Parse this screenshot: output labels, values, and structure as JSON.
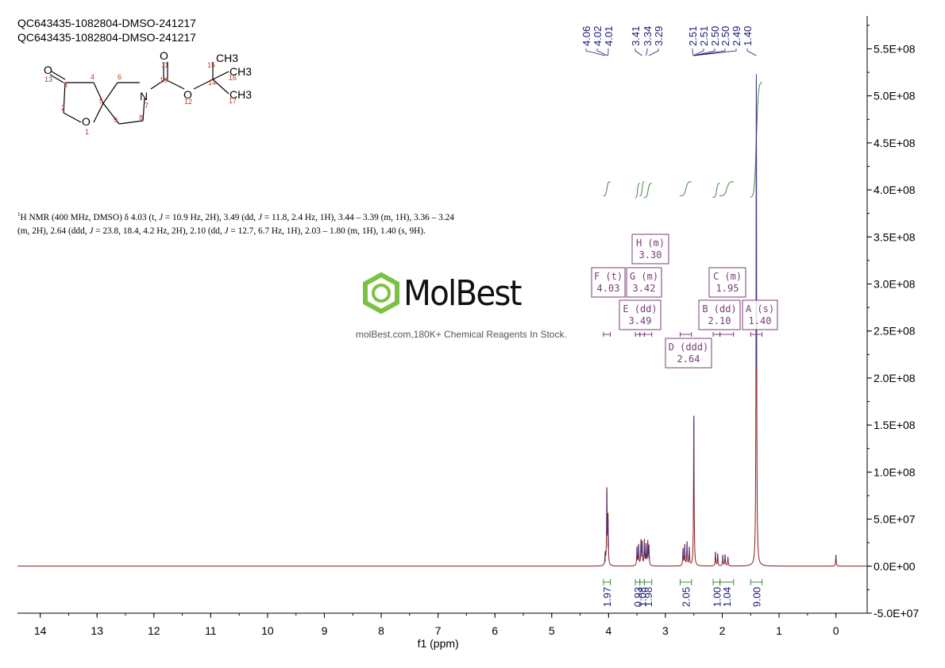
{
  "header": {
    "line1": "QC643435-1082804-DMSO-241217",
    "line2": "QC643435-1082804-DMSO-241217"
  },
  "description": {
    "sup": "1",
    "seg1": "H NMR (400 MHz, DMSO) δ 4.03 (t, ",
    "j1": "J",
    "seg2": " = 10.9 Hz, 2H), 3.49 (dd, ",
    "j2": "J",
    "seg3": " = 11.8, 2.4 Hz, 1H), 3.44 – 3.39 (m, 1H), 3.36 – 3.24 (m, 2H), 2.64 (ddd, ",
    "j3": "J",
    "seg4": " = 23.8, 18.4, 4.2 Hz, 2H), 2.10 (dd, ",
    "j4": "J",
    "seg5": " = 12.7, 6.7 Hz, 1H), 2.03 – 1.80 (m, 1H), 1.40 (s, 9H)."
  },
  "watermark": {
    "brand": "MolBest",
    "tagline": "molBest.com,180K+ Chemical Reagents In Stock."
  },
  "molecule": {
    "atoms": [
      "O",
      "O",
      "N",
      "O",
      "O",
      "CH3",
      "CH3",
      "CH3"
    ],
    "numbers": [
      "13",
      "3",
      "4",
      "6",
      "5",
      "2",
      "1",
      "9",
      "8",
      "7",
      "10",
      "11",
      "12",
      "14",
      "15",
      "16",
      "17"
    ]
  },
  "colors": {
    "spectrum": "#8b1a1a",
    "integral": "#3c8a3c",
    "peak_label": "#1a1a7a",
    "multiplet_box": "#7a3c7a",
    "logo_green": "#7cc242"
  },
  "chart_data": {
    "type": "line",
    "xlabel": "f1 (ppm)",
    "ylabel": "",
    "x_reversed": true,
    "xlim": [
      14.4,
      -0.55
    ],
    "ylim": [
      -50000000.0,
      585000000.0
    ],
    "x_ticks": [
      14,
      13,
      12,
      11,
      10,
      9,
      8,
      7,
      6,
      5,
      4,
      3,
      2,
      1,
      0
    ],
    "y_ticks": [
      -50000000.0,
      0,
      50000000.0,
      100000000.0,
      150000000.0,
      200000000.0,
      250000000.0,
      300000000.0,
      350000000.0,
      400000000.0,
      450000000.0,
      500000000.0,
      550000000.0
    ],
    "y_tick_labels": [
      "-5.0E+07",
      "0.0E+00",
      "5.0E+07",
      "1.0E+08",
      "1.5E+08",
      "2.0E+08",
      "2.5E+08",
      "3.0E+08",
      "3.5E+08",
      "4.0E+08",
      "4.5E+08",
      "5.0E+08",
      "5.5E+08"
    ],
    "peak_labels": [
      "4.06",
      "4.02",
      "4.01",
      "3.41",
      "3.34",
      "3.29",
      "2.51",
      "2.51",
      "2.50",
      "2.50",
      "2.49",
      "1.40"
    ],
    "peaks": [
      {
        "ppm": 4.06,
        "height": 12000000.0
      },
      {
        "ppm": 4.03,
        "height": 80000000.0
      },
      {
        "ppm": 4.01,
        "height": 50000000.0
      },
      {
        "ppm": 3.5,
        "height": 20000000.0
      },
      {
        "ppm": 3.47,
        "height": 22000000.0
      },
      {
        "ppm": 3.43,
        "height": 26000000.0
      },
      {
        "ppm": 3.41,
        "height": 24000000.0
      },
      {
        "ppm": 3.37,
        "height": 27000000.0
      },
      {
        "ppm": 3.34,
        "height": 22000000.0
      },
      {
        "ppm": 3.31,
        "height": 25000000.0
      },
      {
        "ppm": 3.29,
        "height": 20000000.0
      },
      {
        "ppm": 2.69,
        "height": 18000000.0
      },
      {
        "ppm": 2.66,
        "height": 22000000.0
      },
      {
        "ppm": 2.62,
        "height": 25000000.0
      },
      {
        "ppm": 2.58,
        "height": 19000000.0
      },
      {
        "ppm": 2.5,
        "height": 160000000.0
      },
      {
        "ppm": 2.12,
        "height": 15000000.0
      },
      {
        "ppm": 2.08,
        "height": 13000000.0
      },
      {
        "ppm": 1.99,
        "height": 11000000.0
      },
      {
        "ppm": 1.95,
        "height": 12000000.0
      },
      {
        "ppm": 1.9,
        "height": 9000000.0
      },
      {
        "ppm": 1.4,
        "height": 523000000.0
      },
      {
        "ppm": 0.0,
        "height": 12000000.0
      }
    ],
    "integrals": [
      {
        "from": 4.09,
        "to": 3.97,
        "value": "1.97"
      },
      {
        "from": 3.53,
        "to": 3.45,
        "value": "0.93"
      },
      {
        "from": 3.45,
        "to": 3.37,
        "value": "1.08"
      },
      {
        "from": 3.37,
        "to": 3.24,
        "value": "1.98"
      },
      {
        "from": 2.74,
        "to": 2.54,
        "value": "2.05"
      },
      {
        "from": 2.16,
        "to": 2.04,
        "value": "1.00"
      },
      {
        "from": 2.04,
        "to": 1.8,
        "value": "1.04"
      },
      {
        "from": 1.5,
        "to": 1.3,
        "value": "9.00"
      }
    ],
    "multiplets": [
      {
        "letter": "F",
        "type": "(t)",
        "shift": "4.03"
      },
      {
        "letter": "G",
        "type": "(m)",
        "shift": "3.42"
      },
      {
        "letter": "H",
        "type": "(m)",
        "shift": "3.30"
      },
      {
        "letter": "E",
        "type": "(dd)",
        "shift": "3.49"
      },
      {
        "letter": "D",
        "type": "(ddd)",
        "shift": "2.64"
      },
      {
        "letter": "C",
        "type": "(m)",
        "shift": "1.95"
      },
      {
        "letter": "B",
        "type": "(dd)",
        "shift": "2.10"
      },
      {
        "letter": "A",
        "type": "(s)",
        "shift": "1.40"
      }
    ]
  }
}
